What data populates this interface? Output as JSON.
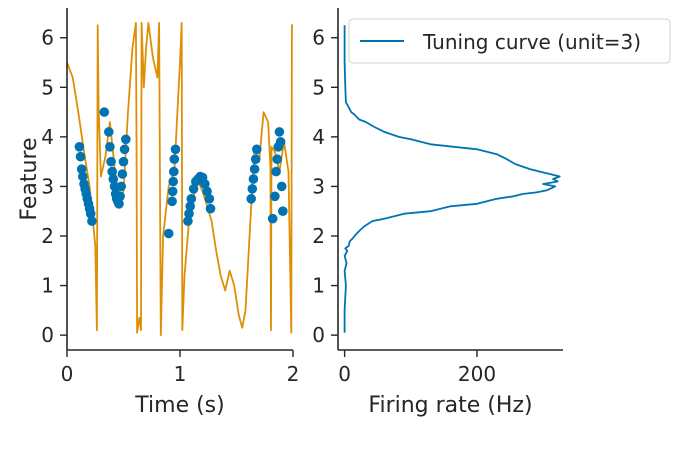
{
  "colors": {
    "feature_line": "#de8f05",
    "spikes": "#0173b2",
    "tuning": "#0173b2",
    "axis": "#262626"
  },
  "chart_data": [
    {
      "type": "line+scatter",
      "title": "",
      "xlabel": "Time (s)",
      "ylabel": "Feature",
      "xlim": [
        0,
        2
      ],
      "ylim": [
        -0.3,
        6.6
      ],
      "xticks": [
        "0",
        "1",
        "2"
      ],
      "yticks": [
        "0",
        "1",
        "2",
        "3",
        "4",
        "5",
        "6"
      ],
      "series": [
        {
          "name": "feature trajectory",
          "kind": "line",
          "x": [
            0.0,
            0.05,
            0.1,
            0.15,
            0.2,
            0.25,
            0.265,
            0.272,
            0.28,
            0.3,
            0.34,
            0.38,
            0.42,
            0.46,
            0.5,
            0.54,
            0.58,
            0.61,
            0.615,
            0.62,
            0.64,
            0.655,
            0.66,
            0.68,
            0.7,
            0.72,
            0.76,
            0.8,
            0.815,
            0.83,
            0.85,
            0.9,
            0.95,
            1.0,
            1.015,
            1.02,
            1.04,
            1.08,
            1.12,
            1.16,
            1.2,
            1.24,
            1.28,
            1.32,
            1.36,
            1.4,
            1.44,
            1.48,
            1.52,
            1.55,
            1.58,
            1.62,
            1.66,
            1.7,
            1.74,
            1.78,
            1.8,
            1.805,
            1.81,
            1.84,
            1.88,
            1.92,
            1.96,
            1.985,
            1.99,
            2.0
          ],
          "y": [
            5.5,
            5.2,
            4.5,
            3.7,
            3.0,
            1.8,
            0.1,
            6.25,
            4.6,
            3.2,
            3.6,
            4.3,
            3.4,
            2.7,
            2.9,
            4.5,
            5.8,
            6.3,
            4.0,
            0.05,
            0.35,
            0.1,
            6.3,
            5.0,
            5.8,
            6.3,
            5.6,
            5.2,
            6.3,
            0.0,
            2.0,
            3.0,
            3.3,
            5.5,
            6.3,
            0.1,
            1.2,
            2.3,
            2.8,
            3.1,
            2.9,
            2.6,
            2.3,
            1.7,
            1.2,
            0.9,
            1.3,
            1.0,
            0.4,
            0.15,
            0.5,
            2.2,
            3.8,
            3.5,
            4.5,
            4.3,
            3.4,
            0.1,
            3.8,
            3.7,
            3.3,
            3.9,
            3.3,
            0.05,
            6.25,
            6.25
          ]
        },
        {
          "name": "spikes",
          "kind": "scatter",
          "x": [
            0.11,
            0.12,
            0.13,
            0.14,
            0.15,
            0.16,
            0.17,
            0.18,
            0.19,
            0.2,
            0.21,
            0.22,
            0.33,
            0.37,
            0.38,
            0.39,
            0.4,
            0.41,
            0.42,
            0.43,
            0.44,
            0.45,
            0.46,
            0.47,
            0.48,
            0.49,
            0.5,
            0.51,
            0.52,
            0.9,
            0.93,
            0.935,
            0.94,
            0.945,
            0.95,
            0.96,
            1.07,
            1.08,
            1.09,
            1.1,
            1.12,
            1.14,
            1.16,
            1.18,
            1.2,
            1.22,
            1.24,
            1.26,
            1.27,
            1.63,
            1.64,
            1.65,
            1.66,
            1.67,
            1.68,
            1.82,
            1.84,
            1.85,
            1.86,
            1.87,
            1.88,
            1.89,
            1.9,
            1.91
          ],
          "y": [
            3.8,
            3.6,
            3.35,
            3.2,
            3.05,
            2.95,
            2.85,
            2.75,
            2.65,
            2.55,
            2.45,
            2.3,
            4.5,
            4.1,
            3.8,
            3.5,
            3.3,
            3.15,
            3.0,
            2.85,
            2.75,
            2.7,
            2.65,
            2.8,
            3.0,
            3.25,
            3.5,
            3.75,
            3.95,
            2.05,
            2.7,
            2.9,
            3.1,
            3.3,
            3.55,
            3.75,
            2.3,
            2.45,
            2.6,
            2.75,
            2.95,
            3.1,
            3.15,
            3.2,
            3.18,
            3.05,
            2.9,
            2.75,
            2.55,
            2.75,
            2.95,
            3.15,
            3.35,
            3.55,
            3.75,
            2.35,
            2.8,
            3.3,
            3.55,
            3.8,
            4.1,
            3.9,
            3.0,
            2.5
          ]
        }
      ]
    },
    {
      "type": "line",
      "title": "",
      "xlabel": "Firing rate (Hz)",
      "ylabel": "",
      "xlim": [
        -10,
        330
      ],
      "ylim": [
        -0.3,
        6.6
      ],
      "xticks": [
        "0",
        "200"
      ],
      "yticks": [
        "0",
        "1",
        "2",
        "3",
        "4",
        "5",
        "6"
      ],
      "legend": {
        "position": "top-right",
        "entries": [
          "Tuning curve (unit=3)"
        ]
      },
      "series": [
        {
          "name": "Tuning curve (unit=3)",
          "x": [
            0,
            0,
            2,
            0,
            3,
            0,
            4,
            1,
            6,
            8,
            12,
            15,
            22,
            30,
            42,
            60,
            90,
            130,
            160,
            200,
            230,
            255,
            270,
            290,
            305,
            318,
            300,
            322,
            315,
            325,
            310,
            295,
            280,
            258,
            245,
            230,
            200,
            165,
            130,
            100,
            82,
            60,
            45,
            32,
            22,
            15,
            10,
            6,
            4,
            2,
            1,
            0,
            0
          ],
          "y": [
            0.05,
            0.5,
            1.0,
            1.3,
            1.45,
            1.6,
            1.7,
            1.75,
            1.8,
            1.9,
            1.95,
            2.0,
            2.1,
            2.2,
            2.3,
            2.35,
            2.45,
            2.5,
            2.6,
            2.65,
            2.75,
            2.8,
            2.85,
            2.88,
            2.92,
            3.0,
            3.05,
            3.1,
            3.15,
            3.2,
            3.25,
            3.3,
            3.35,
            3.45,
            3.55,
            3.65,
            3.75,
            3.8,
            3.85,
            3.95,
            4.0,
            4.1,
            4.2,
            4.3,
            4.35,
            4.45,
            4.5,
            4.6,
            4.65,
            4.7,
            5.0,
            5.5,
            6.25
          ]
        }
      ]
    }
  ]
}
